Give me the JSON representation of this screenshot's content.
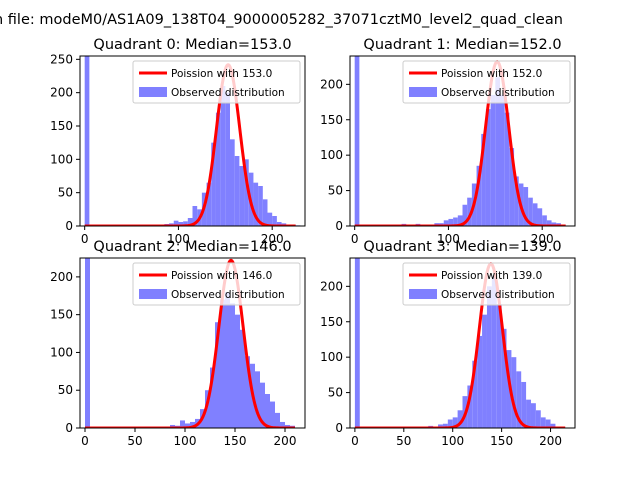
{
  "suptitle": "n file: modeM0/AS1A09_138T04_9000005282_37071cztM0_level2_quad_clean",
  "colors": {
    "observed_bar": "#8080ff",
    "poisson_line": "#ff0000",
    "legend_border": "#cccccc",
    "axes": "#000000"
  },
  "chart_data": [
    {
      "type": "bar",
      "title": "Quadrant 0: Median=153.0",
      "legend": [
        "Poission with 153.0",
        "Observed distribution"
      ],
      "legend_placement": "top-right",
      "xlim": [
        -5,
        235
      ],
      "ylim": [
        0,
        255
      ],
      "xticks": [
        0,
        100,
        200
      ],
      "yticks": [
        0,
        50,
        100,
        150,
        200,
        250
      ],
      "poisson_mean": 153.0,
      "poisson_peak": 242,
      "bin_width": 5,
      "bins": [
        [
          0,
          290
        ],
        [
          10,
          1
        ],
        [
          20,
          1
        ],
        [
          30,
          1
        ],
        [
          40,
          1
        ],
        [
          50,
          1
        ],
        [
          60,
          1
        ],
        [
          70,
          1
        ],
        [
          80,
          2
        ],
        [
          85,
          3
        ],
        [
          90,
          4
        ],
        [
          95,
          8
        ],
        [
          100,
          6
        ],
        [
          105,
          7
        ],
        [
          110,
          12
        ],
        [
          115,
          30
        ],
        [
          120,
          25
        ],
        [
          125,
          50
        ],
        [
          130,
          65
        ],
        [
          135,
          125
        ],
        [
          140,
          170
        ],
        [
          145,
          210
        ],
        [
          150,
          200
        ],
        [
          155,
          130
        ],
        [
          160,
          105
        ],
        [
          165,
          90
        ],
        [
          170,
          100
        ],
        [
          175,
          80
        ],
        [
          180,
          65
        ],
        [
          185,
          60
        ],
        [
          190,
          40
        ],
        [
          195,
          20
        ],
        [
          200,
          15
        ],
        [
          205,
          6
        ],
        [
          210,
          4
        ],
        [
          215,
          2
        ],
        [
          220,
          2
        ],
        [
          225,
          1
        ]
      ]
    },
    {
      "type": "bar",
      "title": "Quadrant 1: Median=152.0",
      "legend": [
        "Poission with 152.0",
        "Observed distribution"
      ],
      "legend_placement": "top-right",
      "xlim": [
        -5,
        235
      ],
      "ylim": [
        0,
        240
      ],
      "xticks": [
        0,
        100,
        200
      ],
      "yticks": [
        0,
        50,
        100,
        150,
        200
      ],
      "poisson_mean": 152.0,
      "poisson_peak": 232,
      "bin_width": 5,
      "bins": [
        [
          0,
          290
        ],
        [
          10,
          1
        ],
        [
          20,
          1
        ],
        [
          40,
          2
        ],
        [
          50,
          3
        ],
        [
          60,
          1
        ],
        [
          65,
          3
        ],
        [
          70,
          2
        ],
        [
          80,
          2
        ],
        [
          85,
          4
        ],
        [
          90,
          4
        ],
        [
          95,
          8
        ],
        [
          100,
          10
        ],
        [
          105,
          12
        ],
        [
          110,
          15
        ],
        [
          115,
          30
        ],
        [
          120,
          40
        ],
        [
          125,
          60
        ],
        [
          130,
          85
        ],
        [
          135,
          130
        ],
        [
          140,
          165
        ],
        [
          145,
          185
        ],
        [
          150,
          210
        ],
        [
          155,
          185
        ],
        [
          160,
          160
        ],
        [
          165,
          110
        ],
        [
          170,
          70
        ],
        [
          175,
          60
        ],
        [
          180,
          55
        ],
        [
          185,
          40
        ],
        [
          190,
          32
        ],
        [
          195,
          25
        ],
        [
          200,
          15
        ],
        [
          205,
          8
        ],
        [
          210,
          5
        ],
        [
          215,
          4
        ],
        [
          220,
          2
        ]
      ]
    },
    {
      "type": "bar",
      "title": "Quadrant 2: Median=146.0",
      "legend": [
        "Poission with 146.0",
        "Observed distribution"
      ],
      "legend_placement": "top-right",
      "xlim": [
        -5,
        220
      ],
      "ylim": [
        0,
        225
      ],
      "xticks": [
        0,
        50,
        100,
        150,
        200
      ],
      "yticks": [
        0,
        50,
        100,
        150,
        200
      ],
      "poisson_mean": 146.0,
      "poisson_peak": 222,
      "bin_width": 5,
      "bins": [
        [
          0,
          290
        ],
        [
          10,
          1
        ],
        [
          30,
          1
        ],
        [
          45,
          1
        ],
        [
          60,
          2
        ],
        [
          75,
          1
        ],
        [
          80,
          2
        ],
        [
          85,
          4
        ],
        [
          90,
          3
        ],
        [
          95,
          10
        ],
        [
          100,
          6
        ],
        [
          105,
          8
        ],
        [
          110,
          12
        ],
        [
          115,
          25
        ],
        [
          120,
          50
        ],
        [
          125,
          80
        ],
        [
          130,
          140
        ],
        [
          135,
          170
        ],
        [
          140,
          180
        ],
        [
          145,
          165
        ],
        [
          150,
          150
        ],
        [
          155,
          130
        ],
        [
          160,
          95
        ],
        [
          165,
          85
        ],
        [
          170,
          75
        ],
        [
          175,
          60
        ],
        [
          180,
          45
        ],
        [
          185,
          35
        ],
        [
          190,
          20
        ],
        [
          195,
          8
        ],
        [
          200,
          4
        ],
        [
          205,
          3
        ]
      ]
    },
    {
      "type": "bar",
      "title": "Quadrant 3: Median=139.0",
      "legend": [
        "Poission with 139.0",
        "Observed distribution"
      ],
      "legend_placement": "top-right",
      "xlim": [
        -5,
        225
      ],
      "ylim": [
        0,
        240
      ],
      "xticks": [
        0,
        50,
        100,
        150,
        200
      ],
      "yticks": [
        0,
        50,
        100,
        150,
        200
      ],
      "poisson_mean": 139.0,
      "poisson_peak": 232,
      "bin_width": 5,
      "bins": [
        [
          0,
          290
        ],
        [
          10,
          1
        ],
        [
          25,
          1
        ],
        [
          40,
          1
        ],
        [
          50,
          2
        ],
        [
          60,
          1
        ],
        [
          70,
          2
        ],
        [
          75,
          3
        ],
        [
          80,
          2
        ],
        [
          85,
          5
        ],
        [
          90,
          6
        ],
        [
          95,
          12
        ],
        [
          100,
          15
        ],
        [
          105,
          25
        ],
        [
          110,
          45
        ],
        [
          115,
          60
        ],
        [
          120,
          95
        ],
        [
          125,
          130
        ],
        [
          130,
          160
        ],
        [
          135,
          200
        ],
        [
          140,
          215
        ],
        [
          145,
          175
        ],
        [
          150,
          140
        ],
        [
          155,
          110
        ],
        [
          160,
          100
        ],
        [
          165,
          80
        ],
        [
          170,
          65
        ],
        [
          175,
          40
        ],
        [
          180,
          35
        ],
        [
          185,
          25
        ],
        [
          190,
          15
        ],
        [
          195,
          12
        ],
        [
          200,
          6
        ],
        [
          205,
          2
        ],
        [
          210,
          1
        ]
      ]
    }
  ]
}
